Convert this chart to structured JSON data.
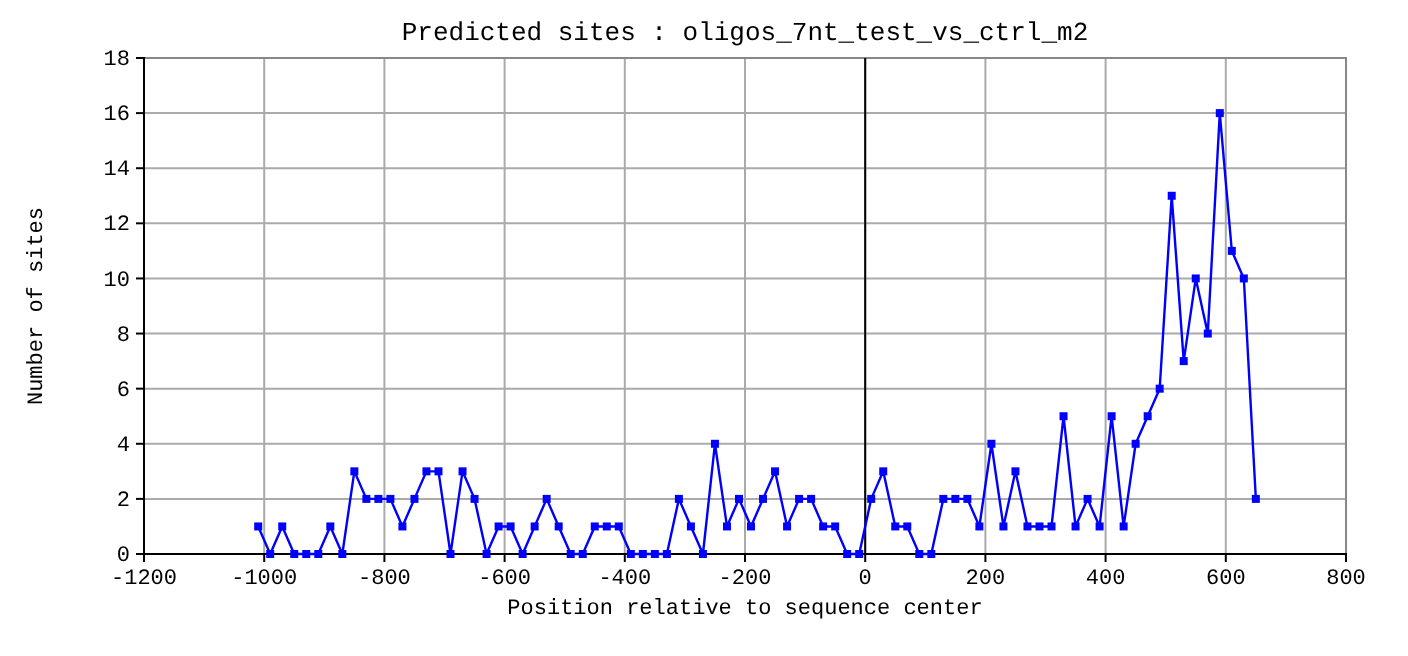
{
  "chart_data": {
    "type": "line",
    "title": "Predicted sites : oligos_7nt_test_vs_ctrl_m2",
    "xlabel": "Position relative to sequence center",
    "ylabel": "Number of sites",
    "x": [
      -1010,
      -990,
      -970,
      -950,
      -930,
      -910,
      -890,
      -870,
      -850,
      -830,
      -810,
      -790,
      -770,
      -750,
      -730,
      -710,
      -690,
      -670,
      -650,
      -630,
      -610,
      -590,
      -570,
      -550,
      -530,
      -510,
      -490,
      -470,
      -450,
      -430,
      -410,
      -390,
      -370,
      -350,
      -330,
      -310,
      -290,
      -270,
      -250,
      -230,
      -210,
      -190,
      -170,
      -150,
      -130,
      -110,
      -90,
      -70,
      -50,
      -30,
      -10,
      10,
      30,
      50,
      70,
      90,
      110,
      130,
      150,
      170,
      190,
      210,
      230,
      250,
      270,
      290,
      310,
      330,
      350,
      370,
      390,
      410,
      430,
      450,
      470,
      490,
      510,
      530,
      550,
      570,
      590,
      610,
      630,
      650
    ],
    "series": [
      {
        "color": "#0000ff",
        "values": [
          1,
          0,
          1,
          0,
          0,
          0,
          1,
          0,
          3,
          2,
          2,
          2,
          1,
          2,
          3,
          3,
          0,
          3,
          2,
          0,
          1,
          1,
          0,
          1,
          2,
          1,
          0,
          0,
          1,
          1,
          1,
          0,
          0,
          0,
          0,
          2,
          1,
          0,
          4,
          1,
          2,
          1,
          2,
          3,
          1,
          2,
          2,
          1,
          1,
          0,
          0,
          2,
          3,
          1,
          1,
          0,
          0,
          2,
          2,
          2,
          1,
          4,
          1,
          3,
          1,
          1,
          1,
          5,
          1,
          2,
          1,
          5,
          1,
          4,
          5,
          6,
          13,
          7,
          10,
          8,
          16,
          11,
          10,
          2
        ]
      }
    ],
    "xlim": [
      -1200,
      800
    ],
    "xticks": [
      -1200,
      -1000,
      -800,
      -600,
      -400,
      -200,
      0,
      200,
      400,
      600,
      800
    ],
    "ylim": [
      0,
      18
    ],
    "yticks": [
      0,
      2,
      4,
      6,
      8,
      10,
      12,
      14,
      16,
      18
    ],
    "ref_lines": [
      {
        "axis": "x",
        "value": 0,
        "color": "#000000"
      }
    ],
    "grid": true,
    "marker": "square",
    "line_style": "solid"
  }
}
